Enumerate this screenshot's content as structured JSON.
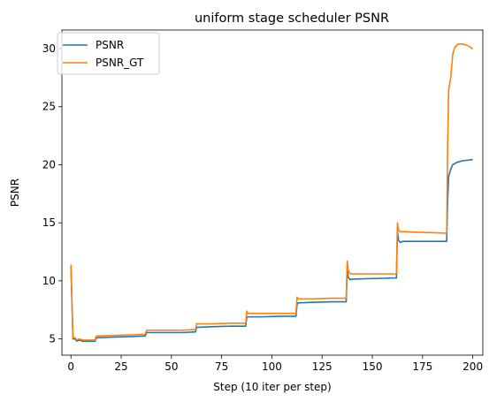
{
  "chart_data": {
    "type": "line",
    "title": "uniform stage scheduler PSNR",
    "xlabel": "Step (10 iter per step)",
    "ylabel": "PSNR",
    "xlim": [
      -4.5,
      205
    ],
    "ylim": [
      3.6,
      31.6
    ],
    "xticks": [
      0,
      25,
      50,
      75,
      100,
      125,
      150,
      175,
      200
    ],
    "yticks": [
      5,
      10,
      15,
      20,
      25,
      30
    ],
    "grid": false,
    "legend": "top-left",
    "series": [
      {
        "name": "PSNR",
        "color": "#1f77b4",
        "x": [
          0,
          1,
          2,
          3,
          4,
          5,
          6,
          7,
          8,
          10,
          12,
          12.5,
          13,
          20,
          30,
          37,
          37.5,
          38,
          45,
          55,
          62,
          62.5,
          63,
          70,
          80,
          87,
          87.5,
          88,
          95,
          105,
          112,
          112.5,
          113,
          120,
          130,
          137,
          137.5,
          138,
          139,
          140,
          150,
          162,
          162.5,
          163,
          164,
          165,
          170,
          180,
          187,
          187.5,
          188,
          189,
          190,
          192,
          195,
          198,
          200
        ],
        "values": [
          11.2,
          5.0,
          5.0,
          4.8,
          4.9,
          4.85,
          4.8,
          4.8,
          4.8,
          4.8,
          4.8,
          5.05,
          5.1,
          5.15,
          5.2,
          5.25,
          5.5,
          5.55,
          5.55,
          5.55,
          5.6,
          5.95,
          6.0,
          6.05,
          6.1,
          6.1,
          6.85,
          6.9,
          6.9,
          6.95,
          6.95,
          7.95,
          8.1,
          8.15,
          8.2,
          8.2,
          11.1,
          10.3,
          10.1,
          10.15,
          10.2,
          10.25,
          14.3,
          13.5,
          13.3,
          13.4,
          13.4,
          13.4,
          13.4,
          17.0,
          19.0,
          19.6,
          20.0,
          20.2,
          20.35,
          20.4,
          20.45
        ]
      },
      {
        "name": "PSNR_GT",
        "color": "#ff7f0e",
        "x": [
          0,
          1,
          2,
          3,
          4,
          5,
          6,
          7,
          8,
          10,
          12,
          12.5,
          13,
          20,
          30,
          37,
          37.5,
          38,
          45,
          55,
          62,
          62.5,
          63,
          70,
          80,
          87,
          87.5,
          88,
          95,
          105,
          112,
          112.5,
          113,
          120,
          130,
          137,
          137.5,
          138,
          139,
          140,
          150,
          162,
          162.5,
          163,
          164,
          165,
          170,
          180,
          187,
          187.5,
          188,
          189,
          190,
          191,
          192,
          193,
          195,
          197,
          198,
          199,
          200
        ],
        "values": [
          11.4,
          5.1,
          5.1,
          4.9,
          5.0,
          4.95,
          4.9,
          4.9,
          4.9,
          4.9,
          4.9,
          5.2,
          5.25,
          5.3,
          5.35,
          5.4,
          5.7,
          5.75,
          5.75,
          5.75,
          5.8,
          6.3,
          6.3,
          6.3,
          6.35,
          6.35,
          7.4,
          7.2,
          7.2,
          7.2,
          7.2,
          8.6,
          8.45,
          8.45,
          8.5,
          8.5,
          11.7,
          10.9,
          10.6,
          10.6,
          10.6,
          10.6,
          15.0,
          14.4,
          14.2,
          14.25,
          14.2,
          14.15,
          14.1,
          22.0,
          26.5,
          27.5,
          29.5,
          30.1,
          30.3,
          30.4,
          30.4,
          30.3,
          30.2,
          30.1,
          29.95
        ]
      }
    ]
  }
}
